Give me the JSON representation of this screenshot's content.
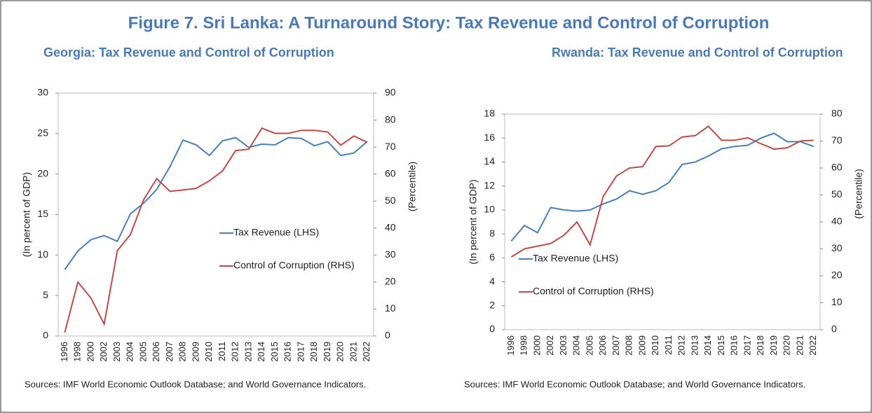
{
  "title": "Figure 7. Sri Lanka: A Turnaround Story: Tax Revenue and Control of Corruption",
  "chart_data": [
    {
      "type": "line",
      "title": "Georgia: Tax Revenue and Control of Corruption",
      "categories": [
        "1996",
        "1998",
        "2000",
        "2002",
        "2003",
        "2004",
        "2005",
        "2006",
        "2007",
        "2008",
        "2009",
        "2010",
        "2011",
        "2012",
        "2013",
        "2014",
        "2015",
        "2016",
        "2017",
        "2018",
        "2019",
        "2020",
        "2021",
        "2022"
      ],
      "series": [
        {
          "name": "Tax Revenue (LHS)",
          "color": "#4a7ebb",
          "values": [
            8.2,
            10.5,
            11.9,
            12.4,
            11.7,
            15.1,
            16.4,
            18.1,
            20.9,
            24.2,
            23.6,
            22.3,
            24.1,
            24.5,
            23.3,
            23.7,
            23.6,
            24.5,
            24.4,
            23.5,
            24.0,
            22.3,
            22.6,
            24.0
          ]
        },
        {
          "name": "Control of Corruption (RHS)",
          "color": "#be4b48",
          "axis": "y2",
          "values": [
            1.3,
            20,
            14,
            4.4,
            31.6,
            37.6,
            50.5,
            58.3,
            53.6,
            54.1,
            54.7,
            57.5,
            61.1,
            68.7,
            69.2,
            77,
            75.1,
            75.1,
            76.2,
            76.2,
            75.6,
            70.7,
            74.1,
            71.8
          ]
        }
      ],
      "ylim": [
        0,
        30
      ],
      "yticks": [
        0,
        5,
        10,
        15,
        20,
        25,
        30
      ],
      "y2lim": [
        0,
        90
      ],
      "y2ticks": [
        0,
        10,
        20,
        30,
        40,
        50,
        60,
        70,
        80,
        90
      ],
      "ylabel": "(In percent of GDP)",
      "y2label": "(Percentile)",
      "source": "Sources: IMF World Economic Outlook Database; and World Governance Indicators."
    },
    {
      "type": "line",
      "title": "Rwanda: Tax Revenue and Control of Corruption",
      "categories": [
        "1996",
        "1998",
        "2000",
        "2002",
        "2003",
        "2004",
        "2005",
        "2006",
        "2007",
        "2008",
        "2009",
        "2010",
        "2011",
        "2012",
        "2013",
        "2014",
        "2015",
        "2016",
        "2017",
        "2018",
        "2019",
        "2020",
        "2021",
        "2022"
      ],
      "series": [
        {
          "name": "Tax Revenue (LHS)",
          "color": "#4a7ebb",
          "values": [
            7.4,
            8.7,
            8.1,
            10.2,
            10.0,
            9.9,
            10.0,
            10.5,
            10.9,
            11.6,
            11.3,
            11.6,
            12.3,
            13.8,
            14.0,
            14.5,
            15.1,
            15.3,
            15.4,
            16.0,
            16.4,
            15.7,
            15.7,
            15.3
          ]
        },
        {
          "name": "Control of Corruption (RHS)",
          "color": "#be4b48",
          "axis": "y2",
          "values": [
            27,
            30,
            31,
            32,
            35,
            40,
            31.5,
            49.5,
            57,
            60,
            60.5,
            68,
            68.2,
            71.5,
            72,
            75.5,
            70.3,
            70.3,
            71.2,
            69,
            67,
            67.5,
            70,
            70.3
          ]
        }
      ],
      "ylim": [
        0,
        18
      ],
      "yticks": [
        0,
        2,
        4,
        6,
        8,
        10,
        12,
        14,
        16,
        18
      ],
      "y2lim": [
        0,
        80
      ],
      "y2ticks": [
        0,
        10,
        20,
        30,
        40,
        50,
        60,
        70,
        80
      ],
      "ylabel": "(In percent of GDP)",
      "y2label": "(Percentile)",
      "source": "Sources: IMF World Economic Outlook Database; and World Governance Indicators."
    }
  ]
}
